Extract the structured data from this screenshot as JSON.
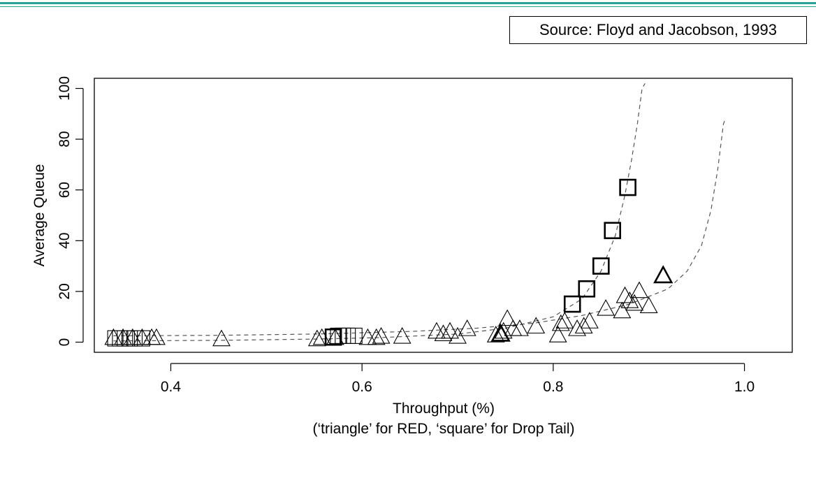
{
  "slide": {
    "source": "Source: Floyd and Jacobson, 1993",
    "accent_color": "#2aa198"
  },
  "chart_data": {
    "type": "scatter",
    "title": "",
    "xlabel": "Throughput (%)",
    "xlabel_note": "(‘triangle’ for RED, ‘square’ for Drop Tail)",
    "ylabel": "Average Queue",
    "xlim": [
      0.32,
      1.05
    ],
    "ylim": [
      -4,
      104
    ],
    "xticks": [
      0.4,
      0.6,
      0.8,
      1.0
    ],
    "xtick_labels": [
      "0.4",
      "0.6",
      "0.8",
      "1.0"
    ],
    "yticks": [
      0,
      20,
      40,
      60,
      80,
      100
    ],
    "ytick_labels": [
      "0",
      "20",
      "40",
      "60",
      "80",
      "100"
    ],
    "grid": false,
    "series": [
      {
        "marker": "triangle",
        "points": [
          [
            0.34,
            1.5
          ],
          [
            0.35,
            1.5
          ],
          [
            0.36,
            1.5
          ],
          [
            0.37,
            1.5
          ],
          [
            0.38,
            1.5
          ],
          [
            0.385,
            1.5
          ],
          [
            0.453,
            1.0
          ],
          [
            0.553,
            1.0
          ],
          [
            0.558,
            1.5
          ],
          [
            0.572,
            1.5
          ],
          [
            0.606,
            1.5
          ],
          [
            0.615,
            1.5
          ],
          [
            0.62,
            2.0
          ],
          [
            0.642,
            2.0
          ],
          [
            0.678,
            4.0
          ],
          [
            0.685,
            3.0
          ],
          [
            0.692,
            4.0
          ],
          [
            0.7,
            2.0
          ],
          [
            0.71,
            5.0
          ],
          [
            0.74,
            2.5
          ],
          [
            0.745,
            3.0
          ],
          [
            0.748,
            4.0
          ],
          [
            0.752,
            9.0
          ],
          [
            0.758,
            5.0
          ],
          [
            0.765,
            5.0
          ],
          [
            0.782,
            6.0
          ],
          [
            0.805,
            2.5
          ],
          [
            0.808,
            7.0
          ],
          [
            0.812,
            8.0
          ],
          [
            0.825,
            5.0
          ],
          [
            0.832,
            6.0
          ],
          [
            0.838,
            8.0
          ],
          [
            0.855,
            13.0
          ],
          [
            0.872,
            12.0
          ],
          [
            0.875,
            18.0
          ],
          [
            0.88,
            16.0
          ],
          [
            0.885,
            15.0
          ],
          [
            0.89,
            20.0
          ],
          [
            0.9,
            14.0
          ]
        ]
      },
      {
        "marker": "triangle-bold",
        "points": [
          [
            0.745,
            3.0
          ],
          [
            0.915,
            26.0
          ]
        ]
      },
      {
        "marker": "square",
        "points": [
          [
            0.342,
            1.5
          ],
          [
            0.347,
            1.5
          ],
          [
            0.352,
            1.5
          ],
          [
            0.357,
            1.5
          ],
          [
            0.362,
            1.5
          ],
          [
            0.37,
            1.5
          ],
          [
            0.575,
            2.5
          ],
          [
            0.58,
            2.5
          ],
          [
            0.585,
            2.5
          ],
          [
            0.592,
            2.5
          ]
        ]
      },
      {
        "marker": "square-bold",
        "points": [
          [
            0.57,
            2.0
          ],
          [
            0.82,
            15.0
          ],
          [
            0.835,
            21.0
          ],
          [
            0.85,
            30.0
          ],
          [
            0.862,
            44.0
          ],
          [
            0.878,
            61.0
          ]
        ]
      }
    ],
    "fit_curves": [
      {
        "style": "dashed",
        "points": [
          [
            0.34,
            0.5
          ],
          [
            0.45,
            0.7
          ],
          [
            0.55,
            1.2
          ],
          [
            0.62,
            1.8
          ],
          [
            0.7,
            3.2
          ],
          [
            0.75,
            5.5
          ],
          [
            0.8,
            10.0
          ],
          [
            0.83,
            17.0
          ],
          [
            0.85,
            28.0
          ],
          [
            0.865,
            42.0
          ],
          [
            0.875,
            58.0
          ],
          [
            0.882,
            72.0
          ],
          [
            0.888,
            86.0
          ],
          [
            0.893,
            100.0
          ],
          [
            0.896,
            102.0
          ]
        ]
      },
      {
        "style": "dashed",
        "points": [
          [
            0.34,
            2.5
          ],
          [
            0.45,
            2.7
          ],
          [
            0.55,
            3.2
          ],
          [
            0.65,
            4.2
          ],
          [
            0.72,
            5.5
          ],
          [
            0.78,
            7.5
          ],
          [
            0.83,
            10.5
          ],
          [
            0.88,
            15.0
          ],
          [
            0.92,
            21.0
          ],
          [
            0.94,
            28.0
          ],
          [
            0.955,
            38.0
          ],
          [
            0.965,
            52.0
          ],
          [
            0.972,
            68.0
          ],
          [
            0.978,
            86.0
          ],
          [
            0.98,
            88.0
          ]
        ]
      }
    ]
  }
}
